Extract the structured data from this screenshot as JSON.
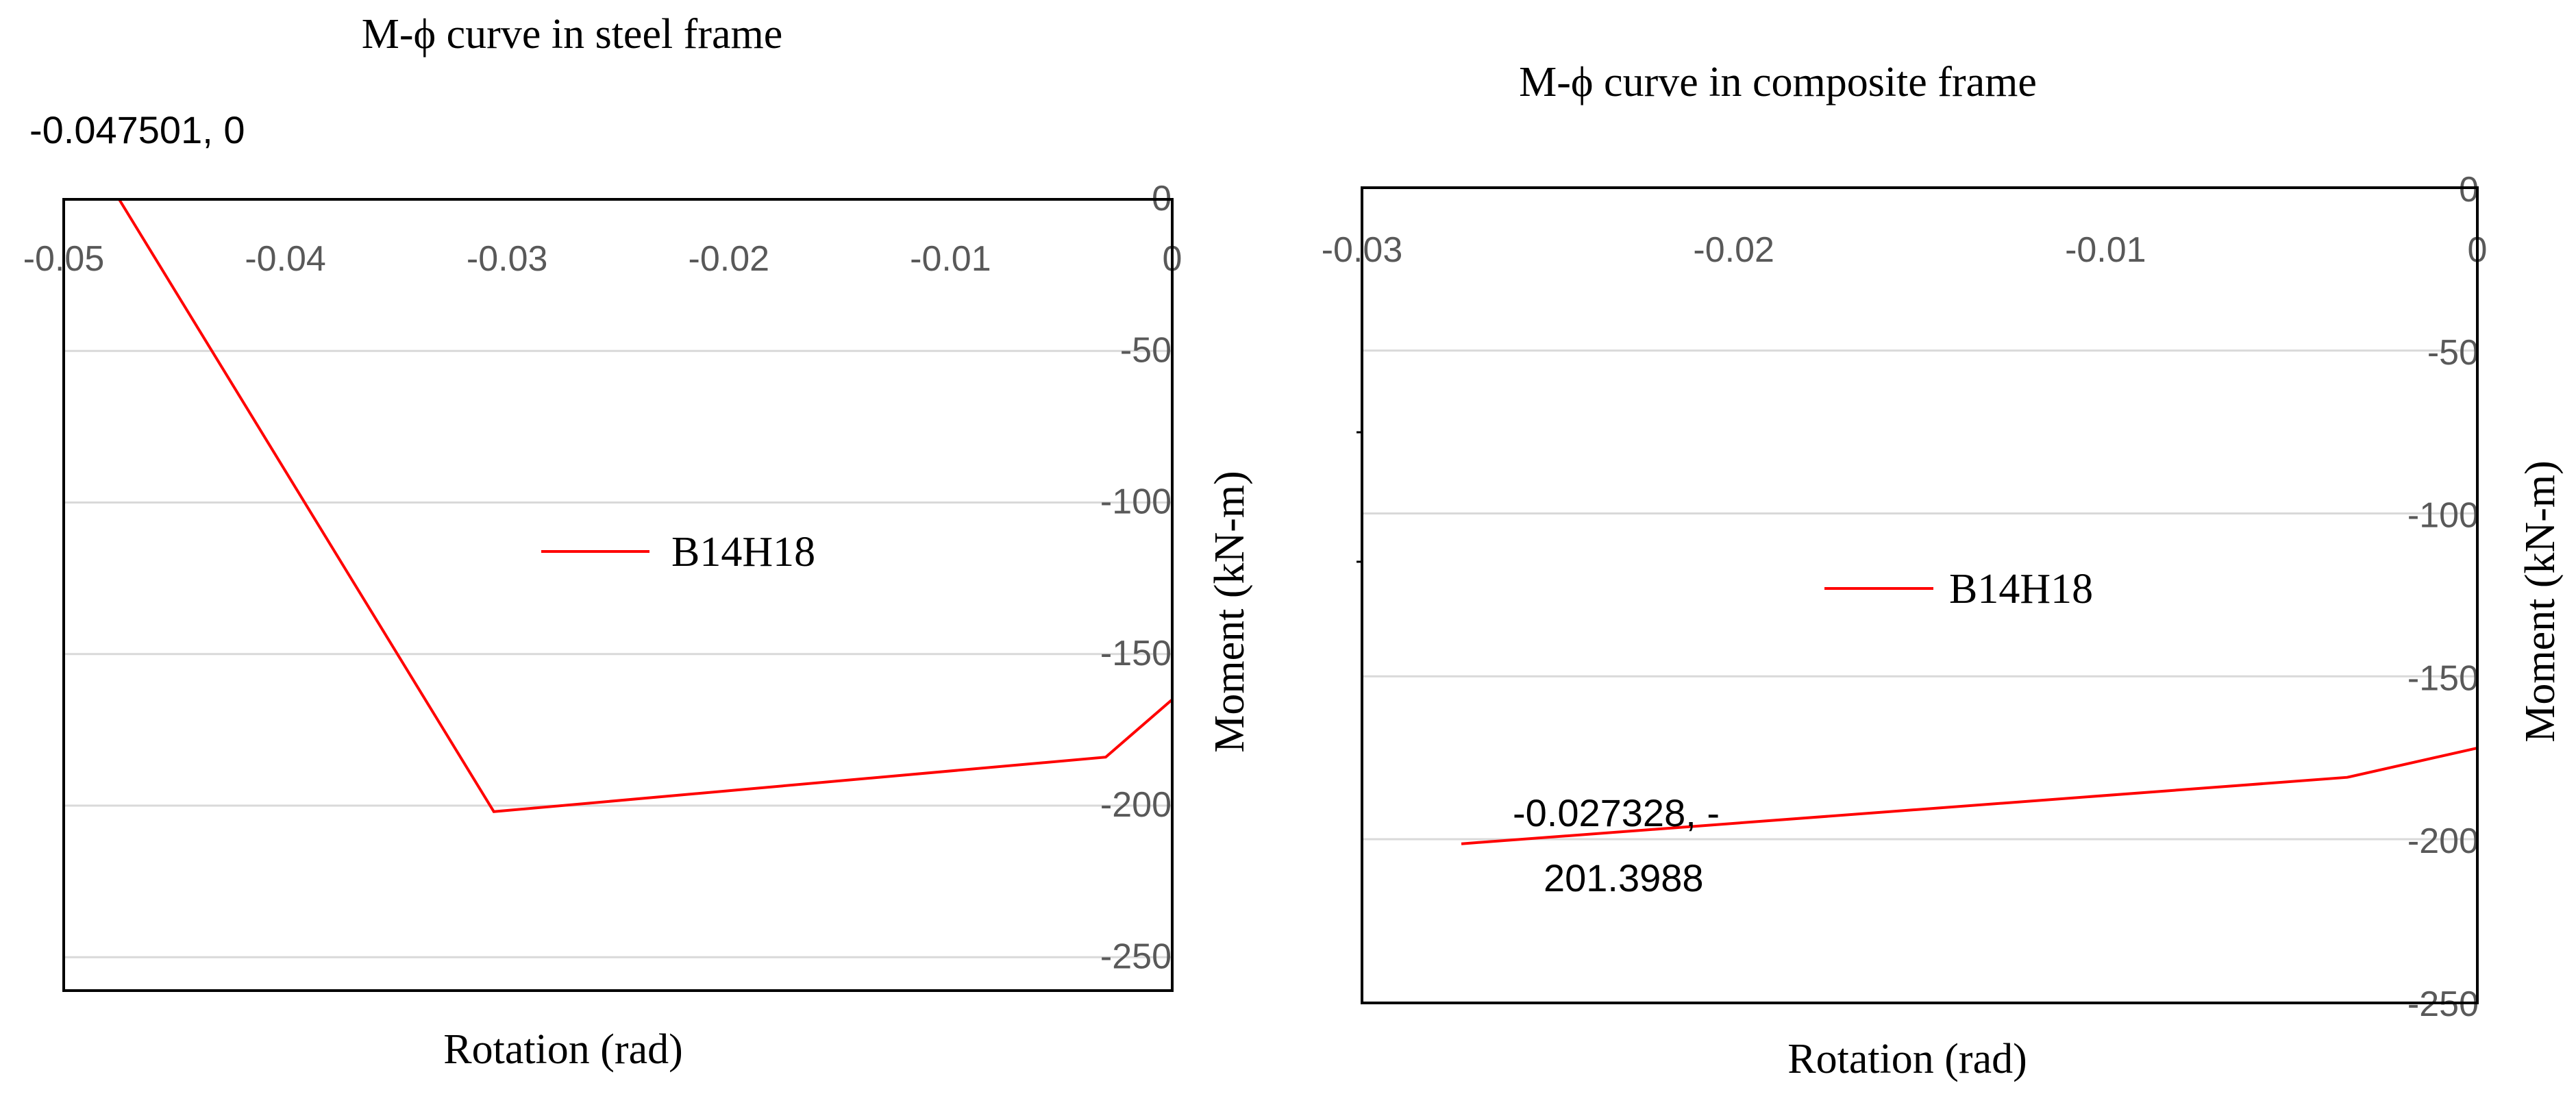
{
  "chart_data": [
    {
      "type": "line",
      "title": "M-ϕ curve in steel frame",
      "xlabel": "Rotation (rad)",
      "ylabel": "Moment (kN-m)",
      "xlim": [
        -0.05,
        0
      ],
      "ylim": [
        -260,
        0
      ],
      "xticks": [
        "-0.05",
        "-0.04",
        "-0.03",
        "-0.02",
        "-0.01",
        "0"
      ],
      "yticks": [
        "0",
        "-50",
        "-100",
        "-150",
        "-200",
        "-250"
      ],
      "grid": true,
      "legend_position": "center",
      "series": [
        {
          "name": "B14H18",
          "color": "#ff0000",
          "x": [
            -0.047501,
            -0.0306,
            -0.003,
            0
          ],
          "y": [
            0,
            -202,
            -184,
            -165
          ]
        }
      ],
      "annotations": [
        {
          "text": "-0.047501, 0"
        }
      ]
    },
    {
      "type": "line",
      "title": "M-ϕ curve in composite frame",
      "xlabel": "Rotation (rad)",
      "ylabel": "Moment (kN-m)",
      "xlim": [
        -0.03,
        0
      ],
      "ylim": [
        -250,
        0
      ],
      "xticks": [
        "-0.03",
        "-0.02",
        "-0.01",
        "0"
      ],
      "yticks": [
        "0",
        "-50",
        "-100",
        "-150",
        "-200",
        "-250"
      ],
      "grid": true,
      "legend_position": "center",
      "series": [
        {
          "name": "B14H18",
          "color": "#ff0000",
          "x": [
            -0.027328,
            -0.0035,
            0
          ],
          "y": [
            -201.3988,
            -181,
            -172
          ]
        }
      ],
      "annotations": [
        {
          "text": "-0.027328, -"
        },
        {
          "text": "201.3988"
        }
      ]
    }
  ]
}
